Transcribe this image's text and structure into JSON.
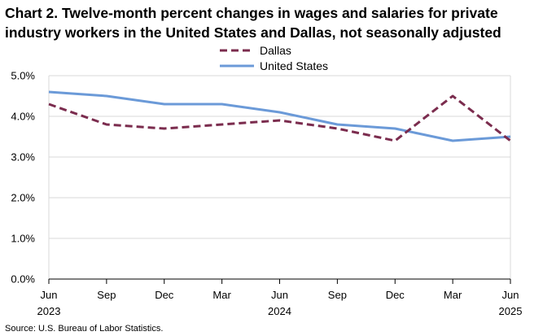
{
  "chart_data": {
    "type": "line",
    "title": "Chart 2. Twelve-month percent changes in wages and salaries for private industry workers in the United States and Dallas, not seasonally adjusted",
    "source": "Source: U.S. Bureau of Labor Statistics.",
    "categories": [
      "Jun\n2023",
      "Sep",
      "Dec",
      "Mar",
      "Jun\n2024",
      "Sep",
      "Dec",
      "Mar",
      "Jun\n2025"
    ],
    "series": [
      {
        "name": "Dallas",
        "color": "#7b2c4e",
        "style": "dashed",
        "values": [
          4.3,
          3.8,
          3.7,
          3.8,
          3.9,
          3.7,
          3.4,
          4.5,
          3.4
        ]
      },
      {
        "name": "United States",
        "color": "#6b9ad8",
        "style": "solid",
        "values": [
          4.6,
          4.5,
          4.3,
          4.3,
          4.1,
          3.8,
          3.7,
          3.4,
          3.5
        ]
      }
    ],
    "ylim": [
      0,
      5
    ],
    "yticks": [
      "0.0%",
      "1.0%",
      "2.0%",
      "3.0%",
      "4.0%",
      "5.0%"
    ],
    "legend": "top-center",
    "grid": true
  }
}
